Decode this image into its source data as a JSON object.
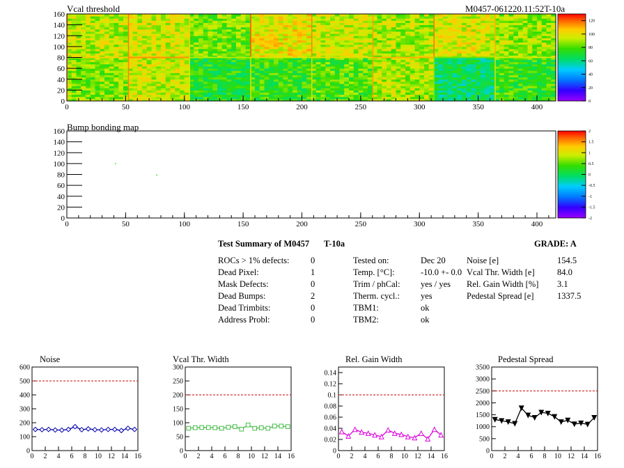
{
  "header": {
    "id": "M0457-061220.11:52T-10a"
  },
  "chart_data": [
    {
      "type": "heatmap",
      "title": "Vcal threshold",
      "xlim": [
        0,
        416
      ],
      "ylim": [
        0,
        160
      ],
      "xticks": [
        0,
        50,
        100,
        150,
        200,
        250,
        300,
        350,
        400
      ],
      "yticks": [
        0,
        20,
        40,
        60,
        80,
        100,
        120,
        140,
        160
      ],
      "colorbar": {
        "min": 0,
        "max": 130,
        "ticks": [
          0,
          20,
          40,
          60,
          80,
          100,
          120
        ]
      },
      "roc_values": {
        "top": [
          92,
          95,
          84,
          100,
          94,
          90,
          96,
          88
        ],
        "bottom": [
          86,
          94,
          72,
          76,
          80,
          90,
          64,
          76
        ]
      }
    },
    {
      "type": "heatmap",
      "title": "Bump bonding map",
      "xlim": [
        0,
        416
      ],
      "ylim": [
        0,
        160
      ],
      "xticks": [
        0,
        50,
        100,
        150,
        200,
        250,
        300,
        350,
        400
      ],
      "yticks": [
        0,
        20,
        40,
        60,
        80,
        100,
        120,
        140,
        160
      ],
      "colorbar": {
        "min": -2,
        "max": 2,
        "ticks": [
          -2,
          -1.5,
          -1,
          -0.5,
          0,
          0.5,
          1,
          1.5,
          2
        ]
      },
      "points": [
        {
          "x": 41,
          "y": 101,
          "v": 0.3
        },
        {
          "x": 76,
          "y": 80,
          "v": 0.3
        }
      ]
    },
    {
      "type": "scatter",
      "title": "Noise",
      "xlim": [
        0,
        16
      ],
      "ylim": [
        0,
        600
      ],
      "xticks": [
        0,
        2,
        4,
        6,
        8,
        10,
        12,
        14,
        16
      ],
      "yticks": [
        0,
        100,
        200,
        300,
        400,
        500,
        600
      ],
      "limit": 500,
      "color": "#0000aa",
      "marker": "diamond",
      "x": [
        0.5,
        1.5,
        2.5,
        3.5,
        4.5,
        5.5,
        6.5,
        7.5,
        8.5,
        9.5,
        10.5,
        11.5,
        12.5,
        13.5,
        14.5,
        15.5
      ],
      "y": [
        152,
        150,
        152,
        148,
        147,
        152,
        172,
        150,
        156,
        150,
        148,
        152,
        152,
        144,
        160,
        152
      ]
    },
    {
      "type": "scatter",
      "title": "Vcal Thr. Width",
      "xlim": [
        0,
        16
      ],
      "ylim": [
        0,
        300
      ],
      "xticks": [
        0,
        2,
        4,
        6,
        8,
        10,
        12,
        14,
        16
      ],
      "yticks": [
        0,
        50,
        100,
        150,
        200,
        250,
        300
      ],
      "limit": 200,
      "color": "#44bb44",
      "marker": "square",
      "x": [
        0.5,
        1.5,
        2.5,
        3.5,
        4.5,
        5.5,
        6.5,
        7.5,
        8.5,
        9.5,
        10.5,
        11.5,
        12.5,
        13.5,
        14.5,
        15.5
      ],
      "y": [
        80,
        82,
        83,
        83,
        82,
        80,
        84,
        86,
        77,
        92,
        80,
        82,
        80,
        88,
        88,
        86
      ]
    },
    {
      "type": "scatter",
      "title": "Rel. Gain Width",
      "xlim": [
        0,
        16
      ],
      "ylim": [
        0,
        0.15
      ],
      "xticks": [
        0,
        2,
        4,
        6,
        8,
        10,
        12,
        14,
        16
      ],
      "yticks": [
        0,
        0.02,
        0.04,
        0.06,
        0.08,
        0.1,
        0.12,
        0.14
      ],
      "limit": 0.1,
      "color": "#dd00dd",
      "marker": "triangle",
      "x": [
        0.5,
        1.5,
        2.5,
        3.5,
        4.5,
        5.5,
        6.5,
        7.5,
        8.5,
        9.5,
        10.5,
        11.5,
        12.5,
        13.5,
        14.5,
        15.5
      ],
      "y": [
        0.034,
        0.026,
        0.038,
        0.033,
        0.031,
        0.028,
        0.025,
        0.037,
        0.031,
        0.029,
        0.025,
        0.023,
        0.031,
        0.021,
        0.038,
        0.028
      ]
    },
    {
      "type": "scatter",
      "title": "Pedestal Spread",
      "xlim": [
        0,
        16
      ],
      "ylim": [
        0,
        3500
      ],
      "xticks": [
        0,
        2,
        4,
        6,
        8,
        10,
        12,
        14,
        16
      ],
      "yticks": [
        0,
        500,
        1000,
        1500,
        2000,
        2500,
        3000,
        3500
      ],
      "limit": 2500,
      "color": "#000000",
      "marker": "triangle-down",
      "x": [
        0.5,
        1.5,
        2.5,
        3.5,
        4.5,
        5.5,
        6.5,
        7.5,
        8.5,
        9.5,
        10.5,
        11.5,
        12.5,
        13.5,
        14.5,
        15.5
      ],
      "y": [
        1300,
        1250,
        1200,
        1130,
        1780,
        1480,
        1380,
        1600,
        1560,
        1420,
        1200,
        1270,
        1110,
        1150,
        1100,
        1380
      ]
    }
  ],
  "summary": {
    "title": "Test Summary of M0457",
    "test": "T-10a",
    "grade": "GRADE:  A",
    "col1": [
      {
        "label": "ROCs > 1% defects:",
        "value": "0"
      },
      {
        "label": "Dead Pixel:",
        "value": "1"
      },
      {
        "label": "Mask Defects:",
        "value": "0"
      },
      {
        "label": "Dead Bumps:",
        "value": "2"
      },
      {
        "label": "Dead Trimbits:",
        "value": "0"
      },
      {
        "label": "Address Probl:",
        "value": "0"
      }
    ],
    "col2": [
      {
        "label": "Tested on:",
        "value": "Dec 20"
      },
      {
        "label": "Temp. [°C]:",
        "value": "-10.0 +- 0.0"
      },
      {
        "label": "Trim / phCal:",
        "value": "yes / yes"
      },
      {
        "label": "Therm. cycl.:",
        "value": "yes"
      },
      {
        "label": "TBM1:",
        "value": "ok"
      },
      {
        "label": "TBM2:",
        "value": "ok"
      }
    ],
    "col3": [
      {
        "label": "Noise [e]",
        "value": "154.5"
      },
      {
        "label": "Vcal Thr. Width [e]",
        "value": "84.0"
      },
      {
        "label": "Rel. Gain Width [%]",
        "value": "3.1"
      },
      {
        "label": "Pedestal Spread [e]",
        "value": "1337.5"
      }
    ]
  }
}
